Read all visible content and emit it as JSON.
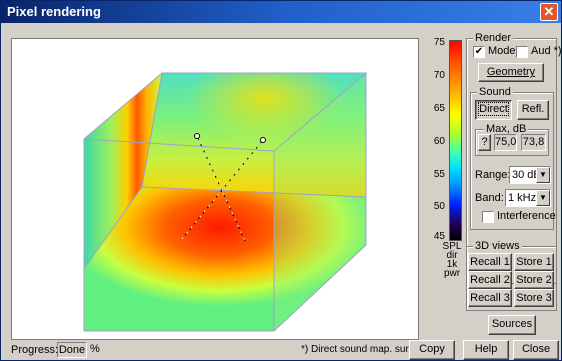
{
  "window": {
    "title": "Pixel rendering"
  },
  "colorbar": {
    "ticks": [
      "75",
      "70",
      "65",
      "60",
      "55",
      "50",
      "45"
    ],
    "legend_lines": [
      "SPL",
      "dir",
      "1k",
      "pwr"
    ]
  },
  "render": {
    "title": "Render",
    "model_label": "Model",
    "model_checked": true,
    "aud_label": "Aud *)",
    "aud_checked": false,
    "geometry_label": "Geometry"
  },
  "sound": {
    "title": "Sound",
    "direct_label": "Direct",
    "refl_label": "Refl.",
    "max": {
      "title": "Max, dB",
      "help": "?",
      "value1": "75,0",
      "value2": "73,8"
    },
    "range_label": "Range:",
    "range_value": "30 dB",
    "band_label": "Band:",
    "band_value": "1 kHz",
    "interference_label": "Interference",
    "interference_checked": false
  },
  "views3d": {
    "title": "3D views",
    "recall": [
      "Recall 1",
      "Recall 2",
      "Recall 3"
    ],
    "store": [
      "Store 1",
      "Store 2",
      "Store 3"
    ]
  },
  "sources_label": "Sources",
  "status": {
    "progress_label": "Progress:",
    "progress_value": "Done",
    "progress_unit": "%",
    "note": "*) Direct sound map. surf.",
    "copy_label": "Copy",
    "help_label": "Help",
    "close_label": "Close"
  }
}
